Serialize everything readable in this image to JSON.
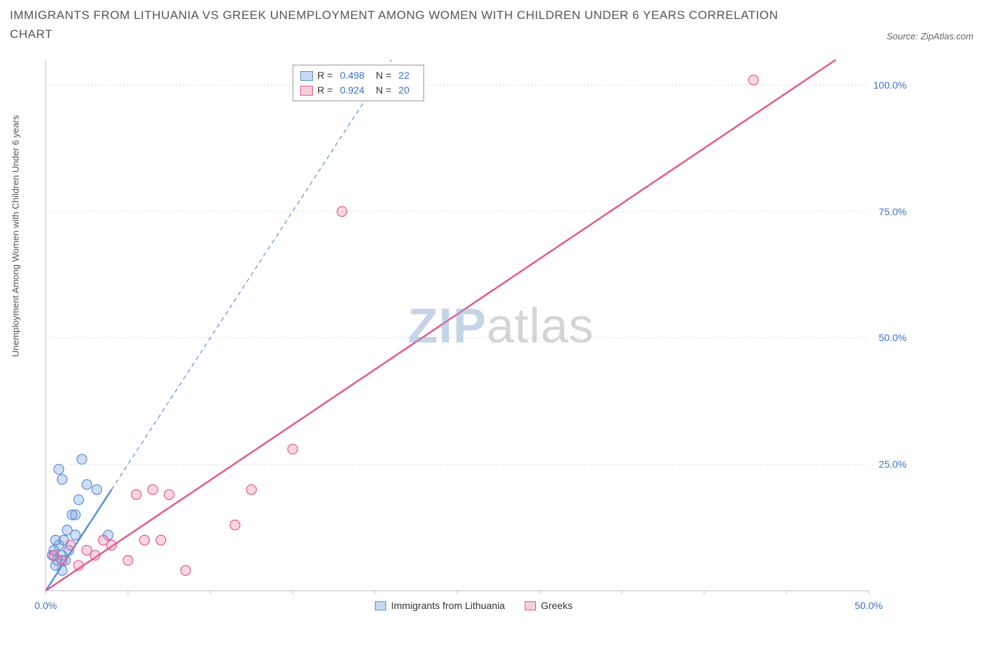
{
  "title": "IMMIGRANTS FROM LITHUANIA VS GREEK UNEMPLOYMENT AMONG WOMEN WITH CHILDREN UNDER 6 YEARS CORRELATION CHART",
  "source_label": "Source: ",
  "source_name": "ZipAtlas.com",
  "ylabel": "Unemployment Among Women with Children Under 6 years",
  "watermark_a": "ZIP",
  "watermark_b": "atlas",
  "chart": {
    "type": "scatter",
    "xlim": [
      0,
      50
    ],
    "ylim": [
      0,
      105
    ],
    "xtick_values": [
      0,
      50
    ],
    "xtick_labels": [
      "0.0%",
      "50.0%"
    ],
    "ytick_values": [
      25,
      50,
      75,
      100
    ],
    "ytick_labels": [
      "25.0%",
      "50.0%",
      "75.0%",
      "100.0%"
    ],
    "gridlines_y": [
      25,
      50,
      75,
      100
    ],
    "grid_color": "#d9d9d9",
    "axis_color": "#bfbfbf",
    "background_color": "#ffffff",
    "marker_radius": 7,
    "marker_stroke_width": 1.2,
    "series": [
      {
        "name": "Immigrants from Lithuania",
        "color_fill": "rgba(120,160,220,0.35)",
        "color_stroke": "#5a8fd6",
        "swatch_fill": "#c6d9f1",
        "swatch_border": "#5a8fd6",
        "R": "0.498",
        "N": "22",
        "trend": {
          "x1": 0,
          "y1": 0,
          "x2": 4,
          "y2": 20,
          "width": 2.5,
          "dash": "none",
          "extend_dash": {
            "x2": 21,
            "y2": 105
          }
        },
        "points": [
          [
            0.4,
            7
          ],
          [
            0.5,
            8
          ],
          [
            0.6,
            5
          ],
          [
            0.8,
            9
          ],
          [
            0.7,
            6
          ],
          [
            1.0,
            7
          ],
          [
            1.1,
            10
          ],
          [
            1.3,
            12
          ],
          [
            1.4,
            8
          ],
          [
            1.6,
            15
          ],
          [
            1.8,
            11
          ],
          [
            1.0,
            22
          ],
          [
            0.8,
            24
          ],
          [
            1.8,
            15
          ],
          [
            2.2,
            26
          ],
          [
            2.5,
            21
          ],
          [
            3.1,
            20
          ],
          [
            3.8,
            11
          ],
          [
            1.0,
            4
          ],
          [
            1.2,
            6
          ],
          [
            0.6,
            10
          ],
          [
            2.0,
            18
          ]
        ]
      },
      {
        "name": "Greeks",
        "color_fill": "rgba(235,120,160,0.30)",
        "color_stroke": "#e35a8f",
        "swatch_fill": "#f7d0de",
        "swatch_border": "#e35a8f",
        "R": "0.924",
        "N": "20",
        "trend": {
          "x1": 0,
          "y1": 0,
          "x2": 48,
          "y2": 105,
          "width": 2.5,
          "dash": "none"
        },
        "points": [
          [
            0.5,
            7
          ],
          [
            1.0,
            6
          ],
          [
            1.5,
            9
          ],
          [
            2.0,
            5
          ],
          [
            2.5,
            8
          ],
          [
            3.0,
            7
          ],
          [
            3.5,
            10
          ],
          [
            4.0,
            9
          ],
          [
            5.0,
            6
          ],
          [
            6.0,
            10
          ],
          [
            6.5,
            20
          ],
          [
            7.0,
            10
          ],
          [
            7.5,
            19
          ],
          [
            8.5,
            4
          ],
          [
            11.5,
            13
          ],
          [
            12.5,
            20
          ],
          [
            15.0,
            28
          ],
          [
            18.0,
            75
          ],
          [
            43.0,
            101
          ],
          [
            5.5,
            19
          ]
        ]
      }
    ],
    "legend_top": {
      "R_label": "R =",
      "N_label": "N ="
    },
    "legend_bottom_items": [
      {
        "series_index": 0
      },
      {
        "series_index": 1
      }
    ]
  }
}
